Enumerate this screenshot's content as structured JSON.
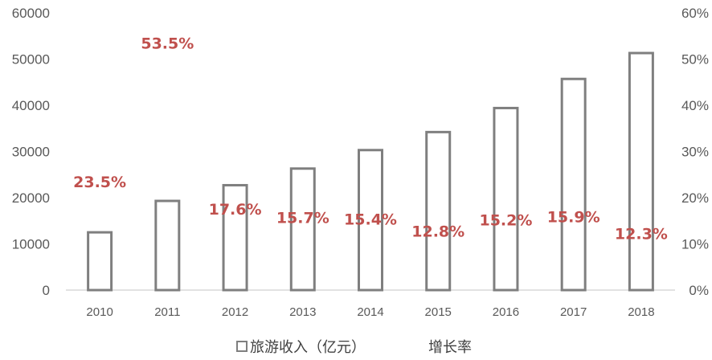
{
  "chart_data": {
    "type": "bar",
    "categories": [
      "2010",
      "2011",
      "2012",
      "2013",
      "2014",
      "2015",
      "2016",
      "2017",
      "2018"
    ],
    "series": [
      {
        "name": "旅游收入（亿元）",
        "type": "bar",
        "axis": "left",
        "values": [
          12500,
          19300,
          22700,
          26300,
          30300,
          34200,
          39400,
          45700,
          51300
        ]
      },
      {
        "name": "增长率",
        "type": "label",
        "axis": "right",
        "values": [
          23.5,
          53.5,
          17.6,
          15.7,
          15.4,
          12.8,
          15.2,
          15.9,
          12.3
        ],
        "labels": [
          "23.5%",
          "53.5%",
          "17.6%",
          "15.7%",
          "15.4%",
          "12.8%",
          "15.2%",
          "15.9%",
          "12.3%"
        ]
      }
    ],
    "y_left": {
      "range": [
        0,
        60000
      ],
      "ticks": [
        "0",
        "10000",
        "20000",
        "30000",
        "40000",
        "50000",
        "60000"
      ]
    },
    "y_right": {
      "range": [
        0,
        60
      ],
      "ticks": [
        "0%",
        "10%",
        "20%",
        "30%",
        "40%",
        "50%",
        "60%"
      ]
    },
    "title": "",
    "xlabel": "",
    "ylabel": "",
    "grid": false,
    "legend": {
      "placement": "bottom-center",
      "items": [
        "旅游收入（亿元）",
        "增长率"
      ]
    },
    "colors": {
      "bar_stroke": "#7f7f7f",
      "rate_label": "#c0504d",
      "axis_text": "#595959"
    }
  }
}
